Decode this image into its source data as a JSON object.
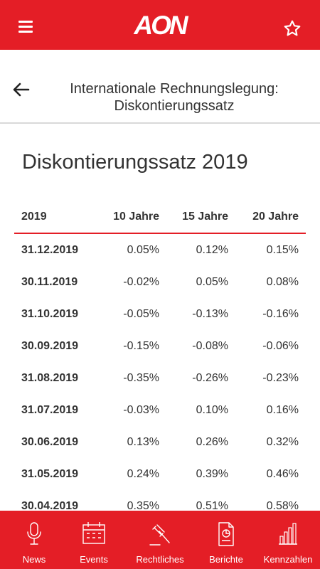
{
  "header": {
    "logo_text": "AON",
    "menu_icon": "hamburger-menu-icon",
    "favorite_icon": "star-icon",
    "brand_color": "#e41e26"
  },
  "page": {
    "back_icon": "arrow-left-icon",
    "title_line1": "Internationale Rechnungslegung:",
    "title_line2": "Diskontierungssatz"
  },
  "section": {
    "title": "Diskontierungssatz 2019"
  },
  "table": {
    "columns": [
      "2019",
      "10 Jahre",
      "15 Jahre",
      "20 Jahre"
    ],
    "rows": [
      [
        "31.12.2019",
        "0.05%",
        "0.12%",
        "0.15%"
      ],
      [
        "30.11.2019",
        "-0.02%",
        "0.05%",
        "0.08%"
      ],
      [
        "31.10.2019",
        "-0.05%",
        "-0.13%",
        "-0.16%"
      ],
      [
        "30.09.2019",
        "-0.15%",
        "-0.08%",
        "-0.06%"
      ],
      [
        "31.08.2019",
        "-0.35%",
        "-0.26%",
        "-0.23%"
      ],
      [
        "31.07.2019",
        "-0.03%",
        "0.10%",
        "0.16%"
      ],
      [
        "30.06.2019",
        "0.13%",
        "0.26%",
        "0.32%"
      ],
      [
        "31.05.2019",
        "0.24%",
        "0.39%",
        "0.46%"
      ],
      [
        "30.04.2019",
        "0.35%",
        "0.51%",
        "0.58%"
      ]
    ]
  },
  "bottom_nav": [
    {
      "label": "News",
      "icon": "microphone-icon"
    },
    {
      "label": "Events",
      "icon": "calendar-icon"
    },
    {
      "label": "Rechtliches",
      "icon": "gavel-icon"
    },
    {
      "label": "Berichte",
      "icon": "report-document-icon"
    },
    {
      "label": "Kennzahlen",
      "icon": "bar-chart-icon"
    }
  ]
}
